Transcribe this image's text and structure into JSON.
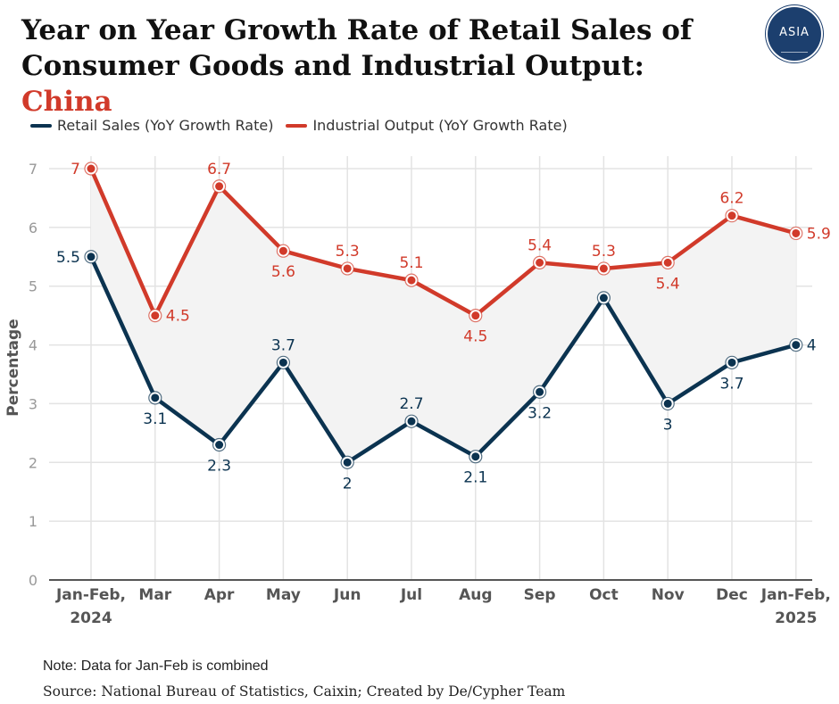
{
  "header": {
    "title_main": "Year on Year Growth Rate of Retail Sales of Consumer Goods and Industrial Output: ",
    "title_highlight": "China",
    "logo_text": "ASIA"
  },
  "colors": {
    "retail": "#0b3350",
    "industrial": "#d13a2a",
    "grid": "#e3e3e3",
    "fill": "#f3f3f3"
  },
  "chart_data": {
    "type": "line",
    "ylabel": "Percentage",
    "ylim": [
      0,
      7
    ],
    "yticks": [
      0,
      1,
      2,
      3,
      4,
      5,
      6,
      7
    ],
    "categories": [
      [
        "Jan-Feb,",
        "2024"
      ],
      [
        "Mar"
      ],
      [
        "Apr"
      ],
      [
        "May"
      ],
      [
        "Jun"
      ],
      [
        "Jul"
      ],
      [
        "Aug"
      ],
      [
        "Sep"
      ],
      [
        "Oct"
      ],
      [
        "Nov"
      ],
      [
        "Dec"
      ],
      [
        "Jan-Feb,",
        "2025"
      ]
    ],
    "series": [
      {
        "name": "Retail Sales (YoY Growth Rate)",
        "key": "retail",
        "values": [
          5.5,
          3.1,
          2.3,
          3.7,
          2.0,
          2.7,
          2.1,
          3.2,
          4.8,
          3.0,
          3.7,
          4.0
        ],
        "labels": [
          "5.5",
          "3.1",
          "2.3",
          "3.7",
          "2",
          "2.7",
          "2.1",
          "3.2",
          "",
          "3",
          "3.7",
          "4"
        ]
      },
      {
        "name": "Industrial Output (YoY Growth Rate)",
        "key": "industrial",
        "values": [
          7.0,
          4.5,
          6.7,
          5.6,
          5.3,
          5.1,
          4.5,
          5.4,
          5.3,
          5.4,
          6.2,
          5.9
        ],
        "labels": [
          "7",
          "4.5",
          "6.7",
          "5.6",
          "5.3",
          "5.1",
          "4.5",
          "5.4",
          "5.3",
          "5.4",
          "6.2",
          "5.9"
        ]
      }
    ]
  },
  "footer": {
    "note": "Note: Data for Jan-Feb is combined",
    "source": "Source:  National Bureau of Statistics, Caixin; Created by De/Cypher Team"
  }
}
